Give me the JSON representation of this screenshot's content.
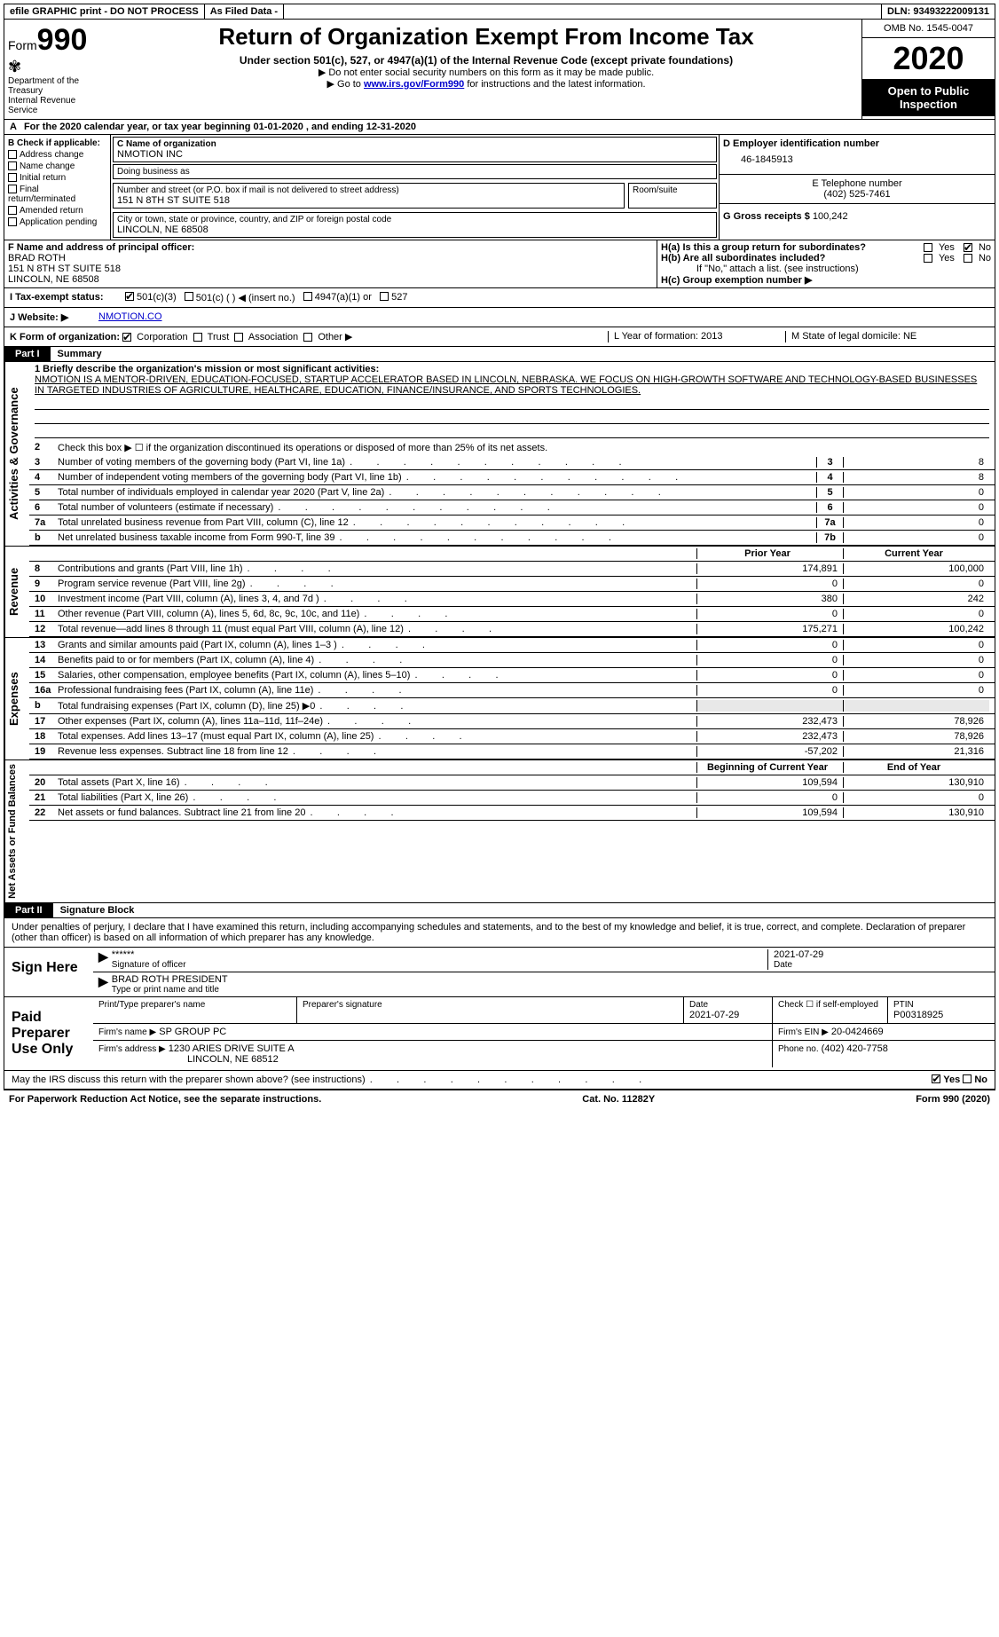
{
  "header": {
    "efile": "efile GRAPHIC print - DO NOT PROCESS",
    "asfiled": "As Filed Data -",
    "dln": "DLN: 93493222009131",
    "form": "Form",
    "form_num": "990",
    "title": "Return of Organization Exempt From Income Tax",
    "sub": "Under section 501(c), 527, or 4947(a)(1) of the Internal Revenue Code (except private foundations)",
    "note1": "▶ Do not enter social security numbers on this form as it may be made public.",
    "note2_pre": "▶ Go to ",
    "note2_link": "www.irs.gov/Form990",
    "note2_post": " for instructions and the latest information.",
    "dept1": "Department of the Treasury",
    "dept2": "Internal Revenue Service",
    "omb": "OMB No. 1545-0047",
    "year": "2020",
    "open": "Open to Public Inspection"
  },
  "A": {
    "text": "For the 2020 calendar year, or tax year beginning 01-01-2020   , and ending 12-31-2020"
  },
  "B": {
    "label": "B Check if applicable:",
    "opts": [
      "Address change",
      "Name change",
      "Initial return",
      "Final return/terminated",
      "Amended return",
      "Application pending"
    ]
  },
  "C": {
    "name_label": "C Name of organization",
    "name": "NMOTION INC",
    "dba_label": "Doing business as",
    "street_label": "Number and street (or P.O. box if mail is not delivered to street address)",
    "street": "151 N 8TH ST SUITE 518",
    "room_label": "Room/suite",
    "city_label": "City or town, state or province, country, and ZIP or foreign postal code",
    "city": "LINCOLN, NE  68508"
  },
  "D": {
    "label": "D Employer identification number",
    "value": "46-1845913"
  },
  "E": {
    "label": "E Telephone number",
    "value": "(402) 525-7461"
  },
  "F": {
    "label": "F  Name and address of principal officer:",
    "name": "BRAD ROTH",
    "street": "151 N 8TH ST SUITE 518",
    "city": "LINCOLN, NE  68508"
  },
  "G": {
    "label": "G Gross receipts $",
    "value": "100,242"
  },
  "H": {
    "a_label": "H(a)  Is this a group return for subordinates?",
    "b_label": "H(b)  Are all subordinates included?",
    "b_note": "If \"No,\" attach a list. (see instructions)",
    "c_label": "H(c)  Group exemption number ▶"
  },
  "I": {
    "label": "I   Tax-exempt status:",
    "o1": "501(c)(3)",
    "o2": "501(c) (   ) ◀ (insert no.)",
    "o3": "4947(a)(1) or",
    "o4": "527"
  },
  "J": {
    "label": "J   Website: ▶",
    "value": "NMOTION.CO"
  },
  "K": {
    "label": "K Form of organization:",
    "o1": "Corporation",
    "o2": "Trust",
    "o3": "Association",
    "o4": "Other ▶",
    "L": "L Year of formation: 2013",
    "M": "M State of legal domicile: NE"
  },
  "partI": {
    "label": "Part I",
    "title": "Summary",
    "l1_label": "1  Briefly describe the organization's mission or most significant activities:",
    "l1_text": "NMOTION IS A MENTOR-DRIVEN, EDUCATION-FOCUSED, STARTUP ACCELERATOR BASED IN LINCOLN, NEBRASKA. WE FOCUS ON HIGH-GROWTH SOFTWARE AND TECHNOLOGY-BASED BUSINESSES IN TARGETED INDUSTRIES OF AGRICULTURE, HEALTHCARE, EDUCATION, FINANCE/INSURANCE, AND SPORTS TECHNOLOGIES.",
    "l2": "Check this box ▶ ☐ if the organization discontinued its operations or disposed of more than 25% of its net assets.",
    "vtabs": [
      "Activities & Governance",
      "Revenue",
      "Expenses",
      "Net Assets or Fund Balances"
    ],
    "lines_gov": [
      {
        "n": "3",
        "t": "Number of voting members of the governing body (Part VI, line 1a)",
        "b": "3",
        "v": "8"
      },
      {
        "n": "4",
        "t": "Number of independent voting members of the governing body (Part VI, line 1b)",
        "b": "4",
        "v": "8"
      },
      {
        "n": "5",
        "t": "Total number of individuals employed in calendar year 2020 (Part V, line 2a)",
        "b": "5",
        "v": "0"
      },
      {
        "n": "6",
        "t": "Total number of volunteers (estimate if necessary)",
        "b": "6",
        "v": "0"
      },
      {
        "n": "7a",
        "t": "Total unrelated business revenue from Part VIII, column (C), line 12",
        "b": "7a",
        "v": "0"
      },
      {
        "n": "b",
        "t": "Net unrelated business taxable income from Form 990-T, line 39",
        "b": "7b",
        "v": "0"
      }
    ],
    "header_prior": "Prior Year",
    "header_current": "Current Year",
    "lines_rev": [
      {
        "n": "8",
        "t": "Contributions and grants (Part VIII, line 1h)",
        "p": "174,891",
        "c": "100,000"
      },
      {
        "n": "9",
        "t": "Program service revenue (Part VIII, line 2g)",
        "p": "0",
        "c": "0"
      },
      {
        "n": "10",
        "t": "Investment income (Part VIII, column (A), lines 3, 4, and 7d )",
        "p": "380",
        "c": "242"
      },
      {
        "n": "11",
        "t": "Other revenue (Part VIII, column (A), lines 5, 6d, 8c, 9c, 10c, and 11e)",
        "p": "0",
        "c": "0"
      },
      {
        "n": "12",
        "t": "Total revenue—add lines 8 through 11 (must equal Part VIII, column (A), line 12)",
        "p": "175,271",
        "c": "100,242"
      }
    ],
    "lines_exp": [
      {
        "n": "13",
        "t": "Grants and similar amounts paid (Part IX, column (A), lines 1–3 )",
        "p": "0",
        "c": "0"
      },
      {
        "n": "14",
        "t": "Benefits paid to or for members (Part IX, column (A), line 4)",
        "p": "0",
        "c": "0"
      },
      {
        "n": "15",
        "t": "Salaries, other compensation, employee benefits (Part IX, column (A), lines 5–10)",
        "p": "0",
        "c": "0"
      },
      {
        "n": "16a",
        "t": "Professional fundraising fees (Part IX, column (A), line 11e)",
        "p": "0",
        "c": "0"
      },
      {
        "n": "b",
        "t": "Total fundraising expenses (Part IX, column (D), line 25) ▶0",
        "p": "",
        "c": "",
        "gray": true
      },
      {
        "n": "17",
        "t": "Other expenses (Part IX, column (A), lines 11a–11d, 11f–24e)",
        "p": "232,473",
        "c": "78,926"
      },
      {
        "n": "18",
        "t": "Total expenses. Add lines 13–17 (must equal Part IX, column (A), line 25)",
        "p": "232,473",
        "c": "78,926"
      },
      {
        "n": "19",
        "t": "Revenue less expenses. Subtract line 18 from line 12",
        "p": "-57,202",
        "c": "21,316"
      }
    ],
    "header_begin": "Beginning of Current Year",
    "header_end": "End of Year",
    "lines_net": [
      {
        "n": "20",
        "t": "Total assets (Part X, line 16)",
        "p": "109,594",
        "c": "130,910"
      },
      {
        "n": "21",
        "t": "Total liabilities (Part X, line 26)",
        "p": "0",
        "c": "0"
      },
      {
        "n": "22",
        "t": "Net assets or fund balances. Subtract line 21 from line 20",
        "p": "109,594",
        "c": "130,910"
      }
    ]
  },
  "partII": {
    "label": "Part II",
    "title": "Signature Block",
    "declare": "Under penalties of perjury, I declare that I have examined this return, including accompanying schedules and statements, and to the best of my knowledge and belief, it is true, correct, and complete. Declaration of preparer (other than officer) is based on all information of which preparer has any knowledge.",
    "sign_here": "Sign Here",
    "stars": "******",
    "sig_officer": "Signature of officer",
    "date": "Date",
    "date_val": "2021-07-29",
    "officer": "BRAD ROTH  PRESIDENT",
    "type_name": "Type or print name and title",
    "paid": "Paid Preparer Use Only",
    "prep_name_label": "Print/Type preparer's name",
    "prep_sig_label": "Preparer's signature",
    "prep_date": "2021-07-29",
    "check_self": "Check ☐ if self-employed",
    "ptin_label": "PTIN",
    "ptin": "P00318925",
    "firm_name_label": "Firm's name    ▶",
    "firm_name": "SP GROUP PC",
    "firm_ein_label": "Firm's EIN ▶",
    "firm_ein": "20-0424669",
    "firm_addr_label": "Firm's address ▶",
    "firm_addr": "1230 ARIES DRIVE SUITE A",
    "firm_city": "LINCOLN, NE  68512",
    "phone_label": "Phone no.",
    "phone": "(402) 420-7758",
    "discuss": "May the IRS discuss this return with the preparer shown above? (see instructions)",
    "paperwork": "For Paperwork Reduction Act Notice, see the separate instructions.",
    "cat": "Cat. No. 11282Y",
    "form_foot": "Form 990 (2020)"
  }
}
